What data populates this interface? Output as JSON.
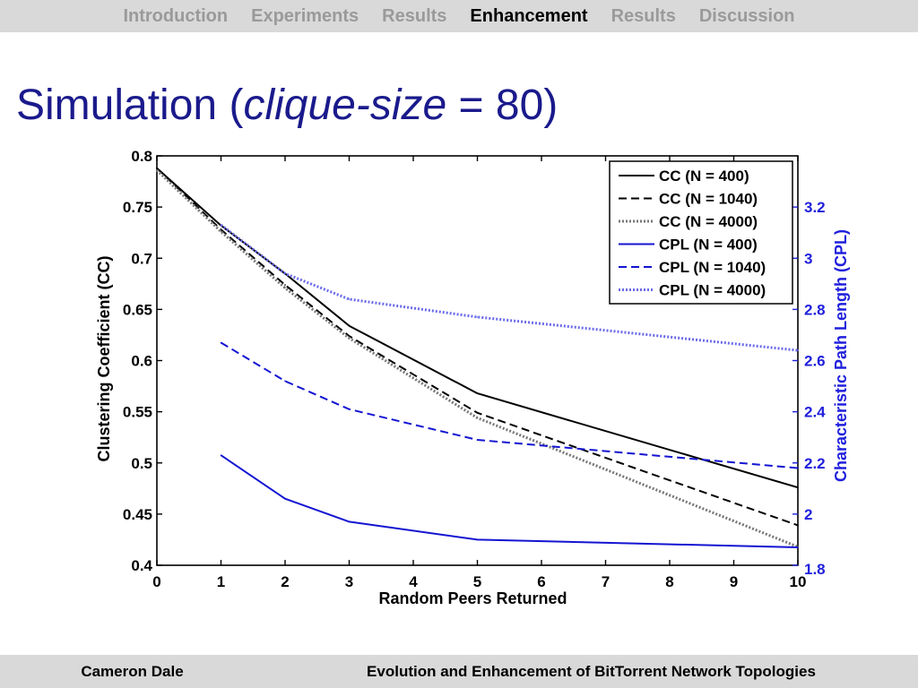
{
  "nav": {
    "items": [
      {
        "label": "Introduction",
        "active": false
      },
      {
        "label": "Experiments",
        "active": false
      },
      {
        "label": "Results",
        "active": false
      },
      {
        "label": "Enhancement",
        "active": true
      },
      {
        "label": "Results",
        "active": false
      },
      {
        "label": "Discussion",
        "active": false
      }
    ]
  },
  "slide": {
    "title_prefix": "Simulation (",
    "title_italic": "clique-size",
    "title_suffix": " = 80)",
    "title_color": "#1a1a8c"
  },
  "footer": {
    "author": "Cameron Dale",
    "talk_title": "Evolution and Enhancement of BitTorrent Network Topologies"
  },
  "chart_data": {
    "type": "line",
    "xlabel": "Random Peers Returned",
    "ylabel_left": "Clustering Coefficient (CC)",
    "ylabel_right": "Characteristic Path Length (CPL)",
    "xlim": [
      0,
      10
    ],
    "ylim_left": [
      0.4,
      0.8
    ],
    "ylim_right": [
      1.8,
      3.4
    ],
    "x_ticks": [
      "0",
      "1",
      "2",
      "3",
      "4",
      "5",
      "6",
      "7",
      "8",
      "9",
      "10"
    ],
    "y_left_ticks": [
      "0.4",
      "0.45",
      "0.5",
      "0.55",
      "0.6",
      "0.65",
      "0.7",
      "0.75",
      "0.8"
    ],
    "y_right_ticks": [
      "1.8",
      "2",
      "2.2",
      "2.4",
      "2.6",
      "2.8",
      "3",
      "3.2"
    ],
    "legend_position": "top-right",
    "grid": false,
    "colors": {
      "cc": "#000000",
      "cpl": "#1414d2",
      "cpl_axis": "#1f1fdc",
      "cpl_faint": "#6b6bea"
    },
    "series": [
      {
        "name": "CC (N = 400)",
        "axis": "left",
        "color": "#000000",
        "style": "solid",
        "x": [
          0,
          1,
          2,
          3,
          5,
          10
        ],
        "values": [
          0.788,
          0.732,
          0.685,
          0.634,
          0.568,
          0.476
        ]
      },
      {
        "name": "CC (N = 1040)",
        "axis": "left",
        "color": "#000000",
        "style": "dashed",
        "x": [
          0,
          1,
          2,
          3,
          5,
          10
        ],
        "values": [
          0.788,
          0.728,
          0.674,
          0.624,
          0.549,
          0.439
        ]
      },
      {
        "name": "CC (N = 4000)",
        "axis": "left",
        "color": "#777777",
        "style": "dotted",
        "x": [
          0,
          1,
          2,
          3,
          5,
          10
        ],
        "values": [
          0.786,
          0.726,
          0.671,
          0.622,
          0.544,
          0.418
        ]
      },
      {
        "name": "CPL (N = 400)",
        "axis": "right",
        "color": "#1414d2",
        "style": "solid",
        "x": [
          1,
          2,
          3,
          5,
          10
        ],
        "values": [
          2.23,
          2.06,
          1.97,
          1.9,
          1.87
        ]
      },
      {
        "name": "CPL (N = 1040)",
        "axis": "right",
        "color": "#1414d2",
        "style": "dashed",
        "x": [
          1,
          2,
          3,
          5,
          10
        ],
        "values": [
          2.67,
          2.52,
          2.41,
          2.29,
          2.18
        ]
      },
      {
        "name": "CPL (N = 4000)",
        "axis": "right",
        "color": "#6b6bea",
        "style": "dotted",
        "x": [
          1,
          2,
          3,
          5,
          10
        ],
        "values": [
          3.13,
          2.94,
          2.84,
          2.77,
          2.64
        ]
      }
    ]
  }
}
